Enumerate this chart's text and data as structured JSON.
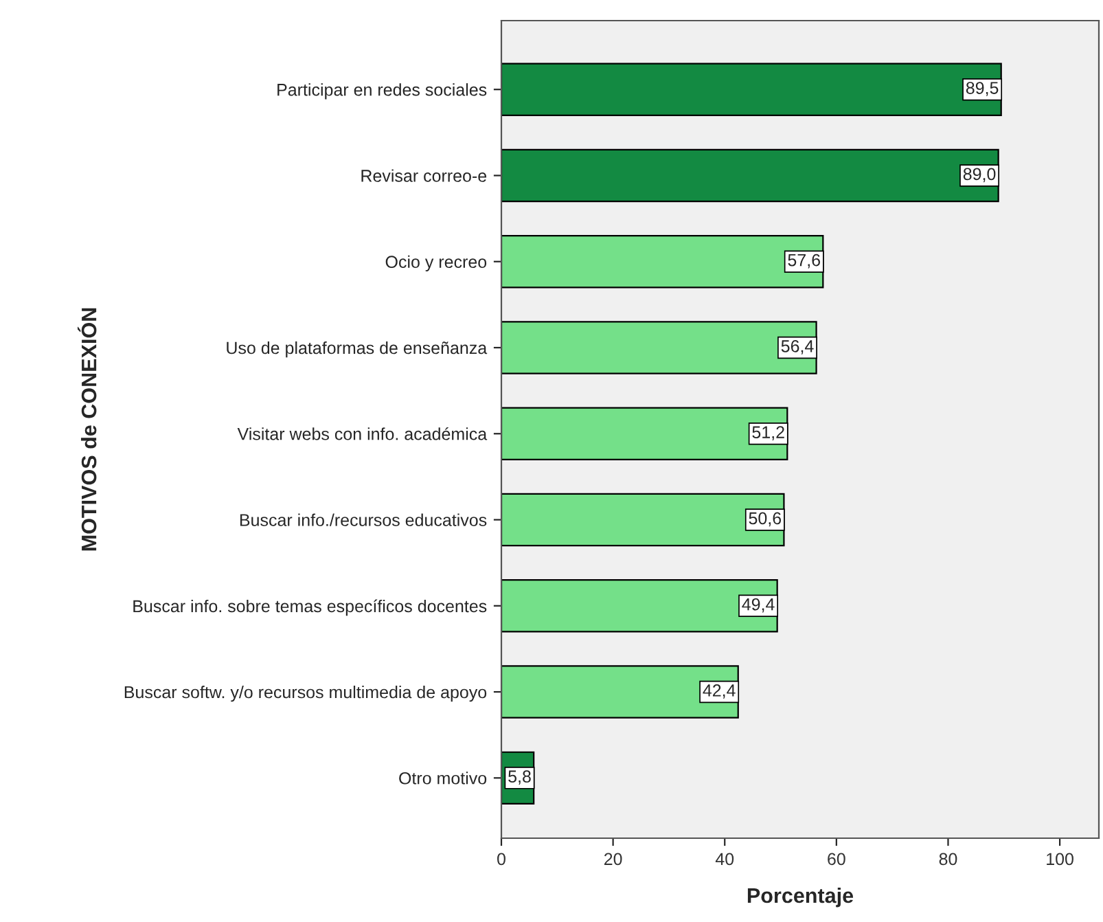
{
  "chart_data": {
    "type": "bar",
    "orientation": "horizontal",
    "xlabel": "Porcentaje",
    "ylabel": "MOTIVOS de CONEXIÓN",
    "categories": [
      "Participar en redes sociales",
      "Revisar correo-e",
      "Ocio y recreo",
      "Uso de plataformas de enseñanza",
      "Visitar webs con info. académica",
      "Buscar info./recursos educativos",
      "Buscar info. sobre temas específicos docentes",
      "Buscar softw. y/o recursos multimedia de apoyo",
      "Otro motivo"
    ],
    "values": [
      89.5,
      89.0,
      57.6,
      56.4,
      51.2,
      50.6,
      49.4,
      42.4,
      5.8
    ],
    "value_labels": [
      "89,5",
      "89,0",
      "57,6",
      "56,4",
      "51,2",
      "50,6",
      "49,4",
      "42,4",
      "5,8"
    ],
    "colors": [
      "#138a42",
      "#138a42",
      "#74e089",
      "#74e089",
      "#74e089",
      "#74e089",
      "#74e089",
      "#74e089",
      "#138a42"
    ],
    "xlim": [
      0,
      107
    ],
    "xticks": [
      0,
      20,
      40,
      60,
      80,
      100
    ],
    "grid": false,
    "legend": false
  }
}
